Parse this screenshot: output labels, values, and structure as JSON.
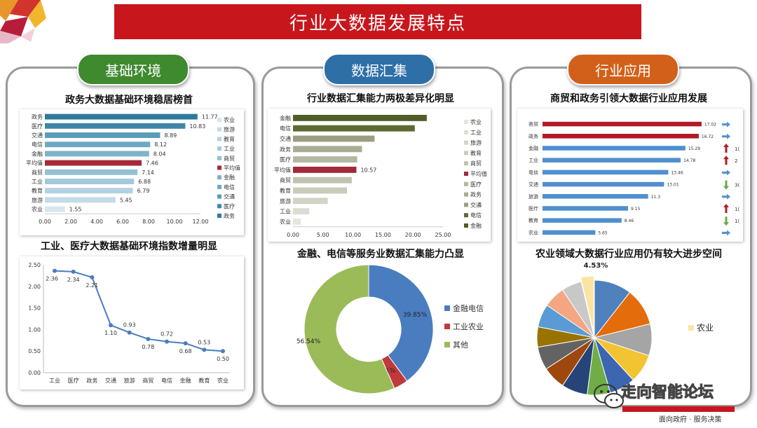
{
  "header": {
    "title": "行业大数据发展特点"
  },
  "sections": {
    "s1": "基础环境",
    "s2": "数据汇集",
    "s3": "行业应用"
  },
  "colors": {
    "title_bg": "#c8161d",
    "pill1": "#3f8a2f",
    "pill2": "#2e6fa8",
    "pill3": "#d2601a"
  },
  "watermark": {
    "text": "走向智能论坛",
    "sub": "面向政府 · 服务决策"
  },
  "chart_data": [
    {
      "type": "bar",
      "title": "政务大数据基础环境稳居榜首",
      "categories": [
        "政务",
        "医疗",
        "交通",
        "电信",
        "金融",
        "平均值",
        "商贸",
        "工业",
        "教育",
        "旅游",
        "农业"
      ],
      "values": [
        11.77,
        10.83,
        8.89,
        8.12,
        8.04,
        7.46,
        7.14,
        6.88,
        6.79,
        5.45,
        1.55
      ],
      "value_labels": [
        "11.77",
        "10.83",
        "8.89",
        "8.12",
        "8.04",
        "7.46",
        "7.14",
        "6.88",
        "6.79",
        "5.45",
        "1.55"
      ],
      "xlim": [
        0,
        12
      ],
      "xticks": [
        "0.00",
        "2.00",
        "4.00",
        "6.00",
        "8.00",
        "10.00",
        "12.00"
      ],
      "legend": [
        "农业",
        "旅游",
        "教育",
        "工业",
        "商贸",
        "平均值",
        "金融",
        "电信",
        "交通",
        "医疗",
        "政务"
      ],
      "legend_position": "right",
      "colors": [
        "#2e7a9c",
        "#3e86a6",
        "#5a9bb7",
        "#6fa9c1",
        "#7eb3c8",
        "#a32a3a",
        "#93c0d2",
        "#a3c9d9",
        "#b3d2df",
        "#c3dbe6",
        "#d6e6ee"
      ]
    },
    {
      "type": "line",
      "title": "工业、医疗大数据基础环境指数增量明显",
      "categories": [
        "工业",
        "医疗",
        "政务",
        "交通",
        "旅游",
        "商贸",
        "电信",
        "金融",
        "教育",
        "农业"
      ],
      "values": [
        2.36,
        2.34,
        2.21,
        1.1,
        0.93,
        0.78,
        0.72,
        0.68,
        0.53,
        0.5
      ],
      "value_labels": [
        "2.36",
        "2.34",
        "2.21",
        "1.10",
        "0.93",
        "0.78",
        "0.72",
        "0.68",
        "0.53",
        "0.50"
      ],
      "ylim": [
        0,
        2.5
      ],
      "yticks": [
        "0.00",
        "0.50",
        "1.00",
        "1.50",
        "2.00",
        "2.50"
      ],
      "color": "#4a7dbf"
    },
    {
      "type": "bar",
      "title": "行业数据汇集能力两极差异化明显",
      "categories": [
        "金融",
        "电信",
        "交通",
        "政务",
        "医疗",
        "平均值",
        "商贸",
        "教育",
        "旅游",
        "工业",
        "农业"
      ],
      "values": [
        22.3,
        20.3,
        13.6,
        11.5,
        10.7,
        10.57,
        9.8,
        9.0,
        5.8,
        2.7,
        1.3
      ],
      "value_labels": [
        "",
        "",
        "",
        "",
        "",
        "10.57",
        "",
        "",
        "",
        "",
        ""
      ],
      "xlim": [
        0,
        25
      ],
      "xticks": [
        "0.00",
        "5.00",
        "10.00",
        "15.00",
        "20.00",
        "25.00"
      ],
      "legend": [
        "农业",
        "工业",
        "旅游",
        "教育",
        "商贸",
        "平均值",
        "医疗",
        "政务",
        "交通",
        "电信",
        "金融"
      ],
      "legend_position": "right",
      "colors": [
        "#4f5e29",
        "#5c6a33",
        "#9a9f82",
        "#a8ad93",
        "#b4b8a2",
        "#a32a3a",
        "#c0c3b0",
        "#c9cbbb",
        "#d2d4c7",
        "#dcdcd3",
        "#e6e6df"
      ]
    },
    {
      "type": "pie",
      "title": "金融、电信等服务业数据汇集能力凸显",
      "labels": [
        "金融电信",
        "工业农业",
        "其他"
      ],
      "values": [
        39.85,
        3.61,
        56.54
      ],
      "value_labels": [
        "39.85%",
        "3.61%",
        "56.54%"
      ],
      "colors": [
        "#4a7dbf",
        "#c0393b",
        "#9bbb59"
      ],
      "legend_position": "right"
    },
    {
      "type": "bar",
      "title": "商贸和政务引领大数据行业应用发展",
      "categories": [
        "商贸",
        "政务",
        "金融",
        "工业",
        "电信",
        "交通",
        "旅游",
        "医疗",
        "教育",
        "农业"
      ],
      "values": [
        17.02,
        16.72,
        15.29,
        14.78,
        13.46,
        13.01,
        11.3,
        9.15,
        8.46,
        5.65
      ],
      "value_labels": [
        "17.02",
        "16.72",
        "15.29",
        "14.78",
        "13.46",
        "13.01",
        "11.3",
        "9.15",
        "8.46",
        "5.65"
      ],
      "xlim": [
        0,
        18
      ],
      "colors": [
        "#b21a24",
        "#b21a24",
        "#4f90cf",
        "#4f90cf",
        "#4f90cf",
        "#4f90cf",
        "#4f90cf",
        "#4f90cf",
        "#4f90cf",
        "#4f90cf"
      ],
      "trend_icons": [
        "right-arrow-icon",
        "right-arrow-icon",
        "up-arrow-icon",
        "up-arrow-icon",
        "right-arrow-icon",
        "down-arrow-icon",
        "right-arrow-icon",
        "up-arrow-icon",
        "down-arrow-icon",
        "right-arrow-icon"
      ],
      "trend_labels": [
        "",
        "",
        "1(",
        "2",
        "",
        "3(",
        "",
        "1(",
        "1(",
        ""
      ]
    },
    {
      "type": "pie",
      "title": "农业领域大数据行业应用仍有较大进步空间",
      "labels": [
        "农业"
      ],
      "value_labels": [
        "4.53%"
      ],
      "highlight": "农业",
      "colors": [
        "#4f81bd",
        "#e46c0a",
        "#a5a5a5",
        "#f2c431",
        "#3c66b0",
        "#70ad47",
        "#264478",
        "#9e480e",
        "#636363",
        "#997300",
        "#5b9bd5",
        "#f4a582",
        "#c8c8c8",
        "#fbe3a1"
      ]
    }
  ]
}
